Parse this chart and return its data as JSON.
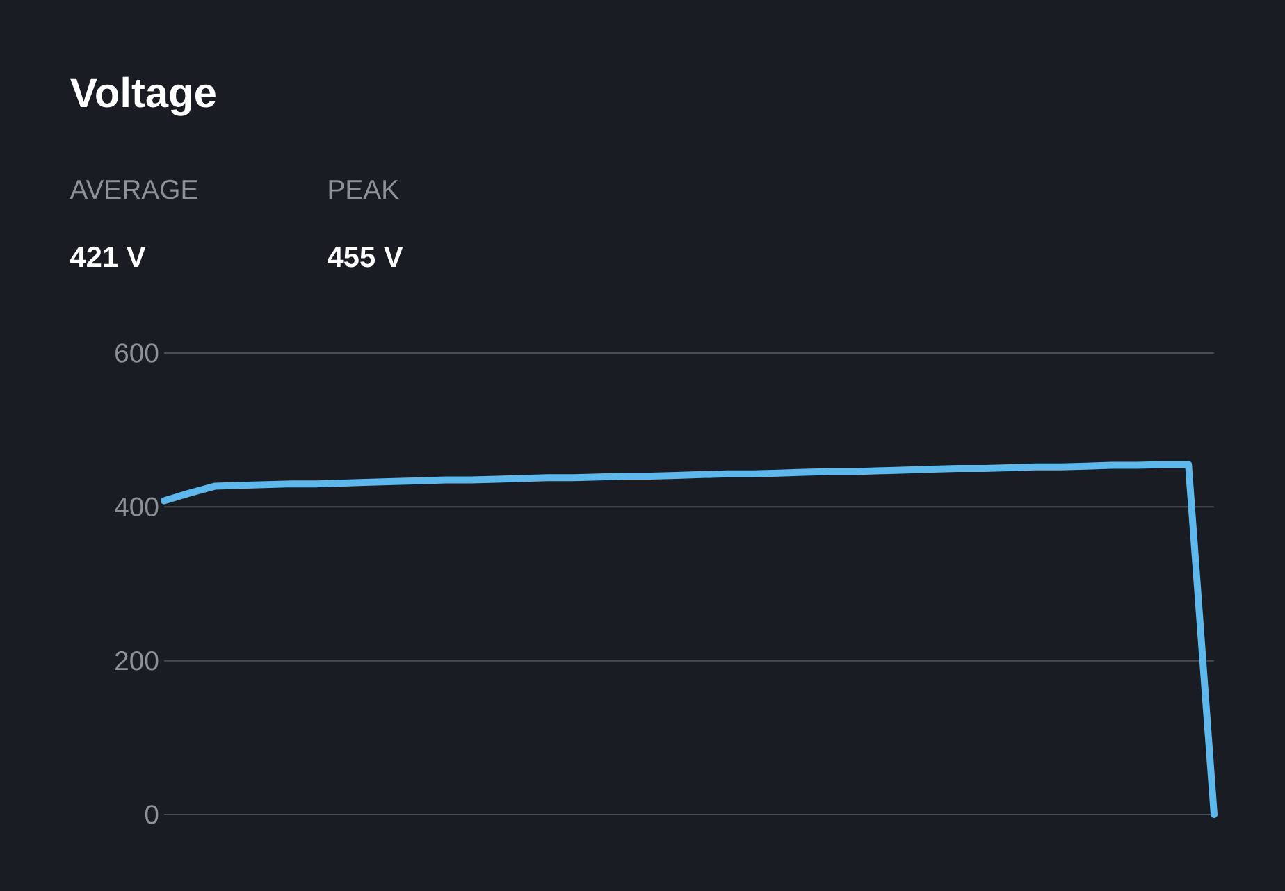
{
  "chart_data": {
    "type": "line",
    "title": "Voltage",
    "annotations": [
      "AVERAGE",
      "421 V",
      "PEAK",
      "455 V"
    ],
    "categories": [
      null,
      null,
      null,
      null,
      null,
      null,
      null,
      null,
      null,
      null,
      null,
      null,
      null,
      null,
      null,
      null,
      null,
      null,
      null,
      null,
      null,
      null,
      null,
      null,
      null,
      null,
      null,
      null,
      null,
      null,
      null,
      null,
      null,
      null,
      null,
      null,
      null,
      null,
      null,
      null,
      null,
      null
    ],
    "series": [
      {
        "color": "#5fb8ec",
        "values": [
          408,
          418,
          427,
          428,
          429,
          430,
          430,
          431,
          432,
          433,
          434,
          435,
          435,
          436,
          437,
          438,
          438,
          439,
          440,
          440,
          441,
          442,
          443,
          443,
          444,
          445,
          446,
          446,
          447,
          448,
          449,
          450,
          450,
          451,
          452,
          452,
          453,
          454,
          454,
          455,
          455,
          0
        ]
      }
    ],
    "ylim": [
      0,
      600
    ],
    "yticks": [
      0,
      200,
      400,
      600
    ],
    "grid": "y",
    "tick_labels": "y",
    "marker": "none",
    "line_style": "solid"
  }
}
